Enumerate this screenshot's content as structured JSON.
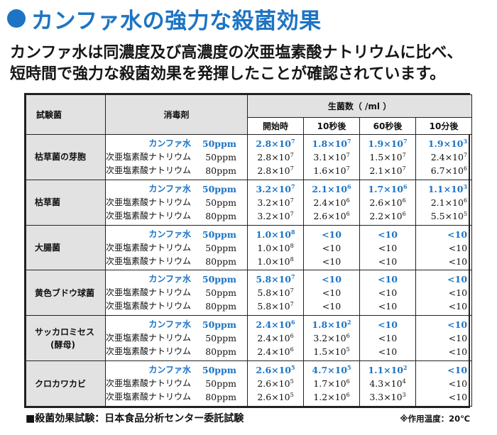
{
  "title": "カンファ水の強力な殺菌効果",
  "lead": [
    "カンファ水は同濃度及び高濃度の次亜塩素酸ナトリウムに比べ、",
    "短時間で強力な殺菌効果を発揮したことが確認されています。"
  ],
  "table": {
    "col_organism": "試験菌",
    "col_disinfectant": "消毒剤",
    "col_count": "生菌数（ /ml ）",
    "time_cols": [
      "開始時",
      "10秒後",
      "60秒後",
      "10分後"
    ],
    "groups": [
      {
        "organism": "枯草菌の芽胞",
        "rows": [
          {
            "name": "カンファ水",
            "conc": "50ppm",
            "highlight": true,
            "vals": [
              [
                "2.8×10",
                "7"
              ],
              [
                "1.8×10",
                "7"
              ],
              [
                "1.9×10",
                "7"
              ],
              [
                "1.9×10",
                "3"
              ]
            ]
          },
          {
            "name": "次亜塩素酸ナトリウム",
            "conc": "50ppm",
            "highlight": false,
            "vals": [
              [
                "2.8×10",
                "7"
              ],
              [
                "3.1×10",
                "7"
              ],
              [
                "1.5×10",
                "7"
              ],
              [
                "2.4×10",
                "7"
              ]
            ]
          },
          {
            "name": "次亜塩素酸ナトリウム",
            "conc": "80ppm",
            "highlight": false,
            "vals": [
              [
                "2.8×10",
                "7"
              ],
              [
                "1.6×10",
                "7"
              ],
              [
                "2.1×10",
                "7"
              ],
              [
                "6.7×10",
                "6"
              ]
            ]
          }
        ]
      },
      {
        "organism": "枯草菌",
        "rows": [
          {
            "name": "カンファ水",
            "conc": "50ppm",
            "highlight": true,
            "vals": [
              [
                "3.2×10",
                "7"
              ],
              [
                "2.1×10",
                "6"
              ],
              [
                "1.7×10",
                "6"
              ],
              [
                "1.1×10",
                "3"
              ]
            ]
          },
          {
            "name": "次亜塩素酸ナトリウム",
            "conc": "50ppm",
            "highlight": false,
            "vals": [
              [
                "3.2×10",
                "7"
              ],
              [
                "2.4×10",
                "6"
              ],
              [
                "2.6×10",
                "6"
              ],
              [
                "2.1×10",
                "6"
              ]
            ]
          },
          {
            "name": "次亜塩素酸ナトリウム",
            "conc": "80ppm",
            "highlight": false,
            "vals": [
              [
                "3.2×10",
                "7"
              ],
              [
                "2.6×10",
                "6"
              ],
              [
                "2.2×10",
                "6"
              ],
              [
                "5.5×10",
                "5"
              ]
            ]
          }
        ]
      },
      {
        "organism": "大腸菌",
        "rows": [
          {
            "name": "カンファ水",
            "conc": "50ppm",
            "highlight": true,
            "vals": [
              [
                "1.0×10",
                "8"
              ],
              [
                "<10",
                ""
              ],
              [
                "<10",
                ""
              ],
              [
                "<10",
                ""
              ]
            ]
          },
          {
            "name": "次亜塩素酸ナトリウム",
            "conc": "50ppm",
            "highlight": false,
            "vals": [
              [
                "1.0×10",
                "8"
              ],
              [
                "<10",
                ""
              ],
              [
                "<10",
                ""
              ],
              [
                "<10",
                ""
              ]
            ]
          },
          {
            "name": "次亜塩素酸ナトリウム",
            "conc": "80ppm",
            "highlight": false,
            "vals": [
              [
                "1.0×10",
                "8"
              ],
              [
                "<10",
                ""
              ],
              [
                "<10",
                ""
              ],
              [
                "<10",
                ""
              ]
            ]
          }
        ]
      },
      {
        "organism": "黄色ブドウ球菌",
        "rows": [
          {
            "name": "カンファ水",
            "conc": "50ppm",
            "highlight": true,
            "vals": [
              [
                "5.8×10",
                "7"
              ],
              [
                "<10",
                ""
              ],
              [
                "<10",
                ""
              ],
              [
                "<10",
                ""
              ]
            ]
          },
          {
            "name": "次亜塩素酸ナトリウム",
            "conc": "50ppm",
            "highlight": false,
            "vals": [
              [
                "5.8×10",
                "7"
              ],
              [
                "<10",
                ""
              ],
              [
                "<10",
                ""
              ],
              [
                "<10",
                ""
              ]
            ]
          },
          {
            "name": "次亜塩素酸ナトリウム",
            "conc": "80ppm",
            "highlight": false,
            "vals": [
              [
                "5.8×10",
                "7"
              ],
              [
                "<10",
                ""
              ],
              [
                "<10",
                ""
              ],
              [
                "<10",
                ""
              ]
            ]
          }
        ]
      },
      {
        "organism": "サッカロミセス",
        "organism_sub": "(酵母)",
        "rows": [
          {
            "name": "カンファ水",
            "conc": "50ppm",
            "highlight": true,
            "vals": [
              [
                "2.4×10",
                "6"
              ],
              [
                "1.8×10",
                "2"
              ],
              [
                "<10",
                ""
              ],
              [
                "<10",
                ""
              ]
            ]
          },
          {
            "name": "次亜塩素酸ナトリウム",
            "conc": "50ppm",
            "highlight": false,
            "vals": [
              [
                "2.4×10",
                "6"
              ],
              [
                "3.2×10",
                "6"
              ],
              [
                "<10",
                ""
              ],
              [
                "<10",
                ""
              ]
            ]
          },
          {
            "name": "次亜塩素酸ナトリウム",
            "conc": "80ppm",
            "highlight": false,
            "vals": [
              [
                "2.4×10",
                "6"
              ],
              [
                "1.5×10",
                "5"
              ],
              [
                "<10",
                ""
              ],
              [
                "<10",
                ""
              ]
            ]
          }
        ]
      },
      {
        "organism": "クロカワカビ",
        "rows": [
          {
            "name": "カンファ水",
            "conc": "50ppm",
            "highlight": true,
            "vals": [
              [
                "2.6×10",
                "5"
              ],
              [
                "4.7×10",
                "5"
              ],
              [
                "1.1×10",
                "2"
              ],
              [
                "<10",
                ""
              ]
            ]
          },
          {
            "name": "次亜塩素酸ナトリウム",
            "conc": "50ppm",
            "highlight": false,
            "vals": [
              [
                "2.6×10",
                "5"
              ],
              [
                "1.7×10",
                "6"
              ],
              [
                "4.3×10",
                "4"
              ],
              [
                "<10",
                ""
              ]
            ]
          },
          {
            "name": "次亜塩素酸ナトリウム",
            "conc": "80ppm",
            "highlight": false,
            "vals": [
              [
                "2.6×10",
                "5"
              ],
              [
                "1.2×10",
                "6"
              ],
              [
                "3.3×10",
                "3"
              ],
              [
                "<10",
                ""
              ]
            ]
          }
        ]
      }
    ]
  },
  "footer_left": "■殺菌効果試験：日本食品分析センター委託試験",
  "footer_right": "※作用温度：20℃",
  "accent_color": "#1d74c4",
  "icons": [
    "bullet-dot-icon"
  ]
}
